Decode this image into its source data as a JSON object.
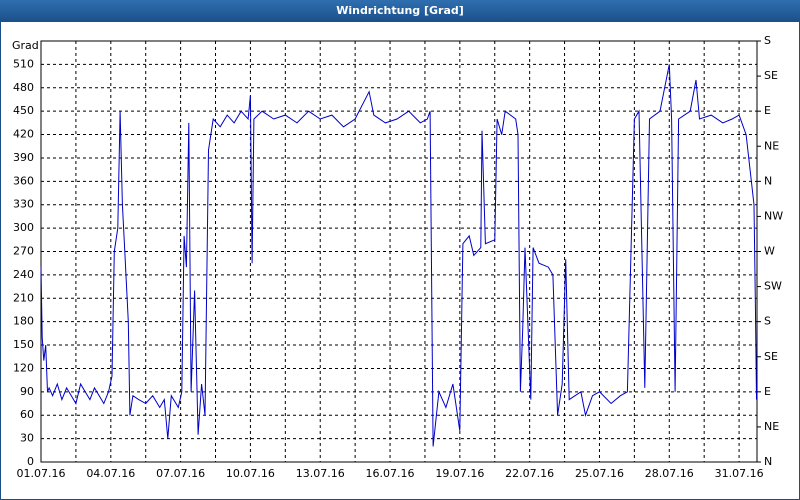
{
  "chart_data": {
    "type": "line",
    "title": "Windrichtung [Grad]",
    "y_label": "Grad",
    "x": [
      0,
      0.05,
      0.12,
      0.2,
      0.28,
      0.35,
      0.5,
      0.7,
      0.9,
      1.1,
      1.3,
      1.5,
      1.7,
      1.9,
      2.1,
      2.3,
      2.5,
      2.7,
      2.9,
      3.05,
      3.15,
      3.3,
      3.4,
      3.5,
      3.6,
      3.75,
      3.82,
      3.95,
      4.2,
      4.5,
      4.8,
      5.1,
      5.3,
      5.45,
      5.6,
      5.9,
      6.05,
      6.15,
      6.25,
      6.35,
      6.45,
      6.6,
      6.75,
      6.9,
      7.05,
      7.2,
      7.4,
      7.7,
      8.0,
      8.3,
      8.6,
      8.9,
      9.0,
      9.07,
      9.15,
      9.5,
      10,
      10.5,
      11,
      11.5,
      12,
      12.5,
      13,
      13.5,
      14.1,
      14.3,
      14.8,
      15.3,
      15.8,
      16.3,
      16.6,
      16.72,
      16.85,
      17.1,
      17.4,
      17.7,
      17.9,
      18.0,
      18.13,
      18.4,
      18.6,
      18.9,
      18.95,
      19.1,
      19.5,
      19.6,
      19.8,
      19.95,
      20.4,
      20.5,
      20.6,
      20.7,
      20.8,
      21.05,
      21.15,
      21.4,
      21.8,
      22.0,
      22.2,
      22.4,
      22.55,
      22.7,
      23.2,
      23.4,
      23.7,
      24.0,
      24.5,
      24.9,
      25.2,
      25.5,
      25.7,
      25.95,
      26.15,
      26.6,
      27.0,
      27.1,
      27.25,
      27.4,
      27.9,
      28.15,
      28.3,
      28.8,
      29.3,
      29.7,
      30.0,
      30.3,
      30.64,
      30.7,
      30.75
    ],
    "series": [
      {
        "color": "#0000c8",
        "values": [
          250,
          160,
          130,
          150,
          90,
          95,
          85,
          100,
          80,
          95,
          85,
          75,
          100,
          90,
          80,
          95,
          85,
          75,
          90,
          110,
          270,
          300,
          450,
          330,
          270,
          180,
          60,
          85,
          80,
          75,
          85,
          70,
          80,
          30,
          85,
          70,
          90,
          290,
          250,
          435,
          90,
          220,
          35,
          100,
          60,
          400,
          440,
          430,
          445,
          435,
          450,
          440,
          470,
          255,
          440,
          450,
          440,
          445,
          435,
          450,
          440,
          445,
          430,
          440,
          475,
          445,
          435,
          440,
          450,
          435,
          440,
          450,
          20,
          90,
          70,
          100,
          60,
          40,
          280,
          290,
          265,
          275,
          425,
          280,
          285,
          440,
          420,
          450,
          440,
          420,
          90,
          170,
          275,
          80,
          275,
          255,
          250,
          240,
          60,
          100,
          260,
          80,
          90,
          60,
          85,
          90,
          75,
          85,
          90,
          440,
          450,
          95,
          440,
          450,
          510,
          440,
          90,
          440,
          450,
          490,
          440,
          445,
          435,
          440,
          445,
          420,
          330,
          200,
          80
        ]
      }
    ],
    "xlim": [
      0,
      30.77
    ],
    "xticks": [
      {
        "value": 0,
        "label": "01.07.16"
      },
      {
        "value": 3,
        "label": "04.07.16"
      },
      {
        "value": 6,
        "label": "07.07.16"
      },
      {
        "value": 9,
        "label": "10.07.16"
      },
      {
        "value": 12,
        "label": "13.07.16"
      },
      {
        "value": 15,
        "label": "16.07.16"
      },
      {
        "value": 18,
        "label": "19.07.16"
      },
      {
        "value": 21,
        "label": "22.07.16"
      },
      {
        "value": 24,
        "label": "25.07.16"
      },
      {
        "value": 27,
        "label": "28.07.16"
      },
      {
        "value": 30,
        "label": "31.07.16"
      }
    ],
    "xgrid": [
      1.5,
      4.5,
      7.5,
      10.5,
      13.5,
      16.5,
      19.5,
      22.5,
      25.5,
      28.5
    ],
    "ylim": [
      0,
      540
    ],
    "yticks": [
      0,
      30,
      60,
      90,
      120,
      150,
      180,
      210,
      240,
      270,
      300,
      330,
      360,
      390,
      420,
      450,
      480,
      510
    ],
    "y2lim": [
      0,
      540
    ],
    "y2ticks": [
      {
        "value": 0,
        "label": "N"
      },
      {
        "value": 45,
        "label": "NE"
      },
      {
        "value": 90,
        "label": "E"
      },
      {
        "value": 135,
        "label": "SE"
      },
      {
        "value": 180,
        "label": "S"
      },
      {
        "value": 225,
        "label": "SW"
      },
      {
        "value": 270,
        "label": "W"
      },
      {
        "value": 315,
        "label": "NW"
      },
      {
        "value": 360,
        "label": "N"
      },
      {
        "value": 405,
        "label": "NE"
      },
      {
        "value": 450,
        "label": "E"
      },
      {
        "value": 495,
        "label": "SE"
      },
      {
        "value": 540,
        "label": "S"
      }
    ],
    "grid": true
  }
}
